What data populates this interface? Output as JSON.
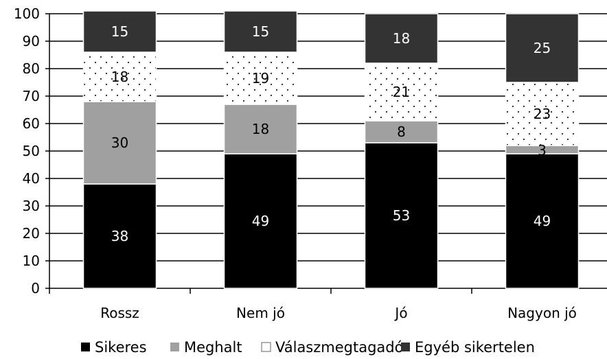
{
  "chart_data": {
    "type": "bar",
    "stacked": true,
    "categories": [
      "Rossz",
      "Nem jó",
      "Jó",
      "Nagyon jó"
    ],
    "series": [
      {
        "name": "Sikeres",
        "values": [
          38,
          49,
          53,
          49
        ],
        "color": "#000000",
        "label_color": "#ffffff",
        "pattern": "solid"
      },
      {
        "name": "Meghalt",
        "values": [
          30,
          18,
          8,
          3
        ],
        "color": "#a0a0a0",
        "label_color": "#000000",
        "pattern": "solid"
      },
      {
        "name": "Válaszmegtagadó",
        "values": [
          18,
          19,
          21,
          23
        ],
        "color": "#ffffff",
        "label_color": "#000000",
        "pattern": "dots"
      },
      {
        "name": "Egyéb sikertelen",
        "values": [
          15,
          15,
          18,
          25
        ],
        "color": "#333333",
        "label_color": "#ffffff",
        "pattern": "solid"
      }
    ],
    "y_ticks": [
      "0",
      "10",
      "20",
      "30",
      "40",
      "50",
      "60",
      "70",
      "80",
      "90",
      "100"
    ],
    "ylim": [
      0,
      100
    ],
    "grid": true,
    "legend_position": "bottom"
  }
}
